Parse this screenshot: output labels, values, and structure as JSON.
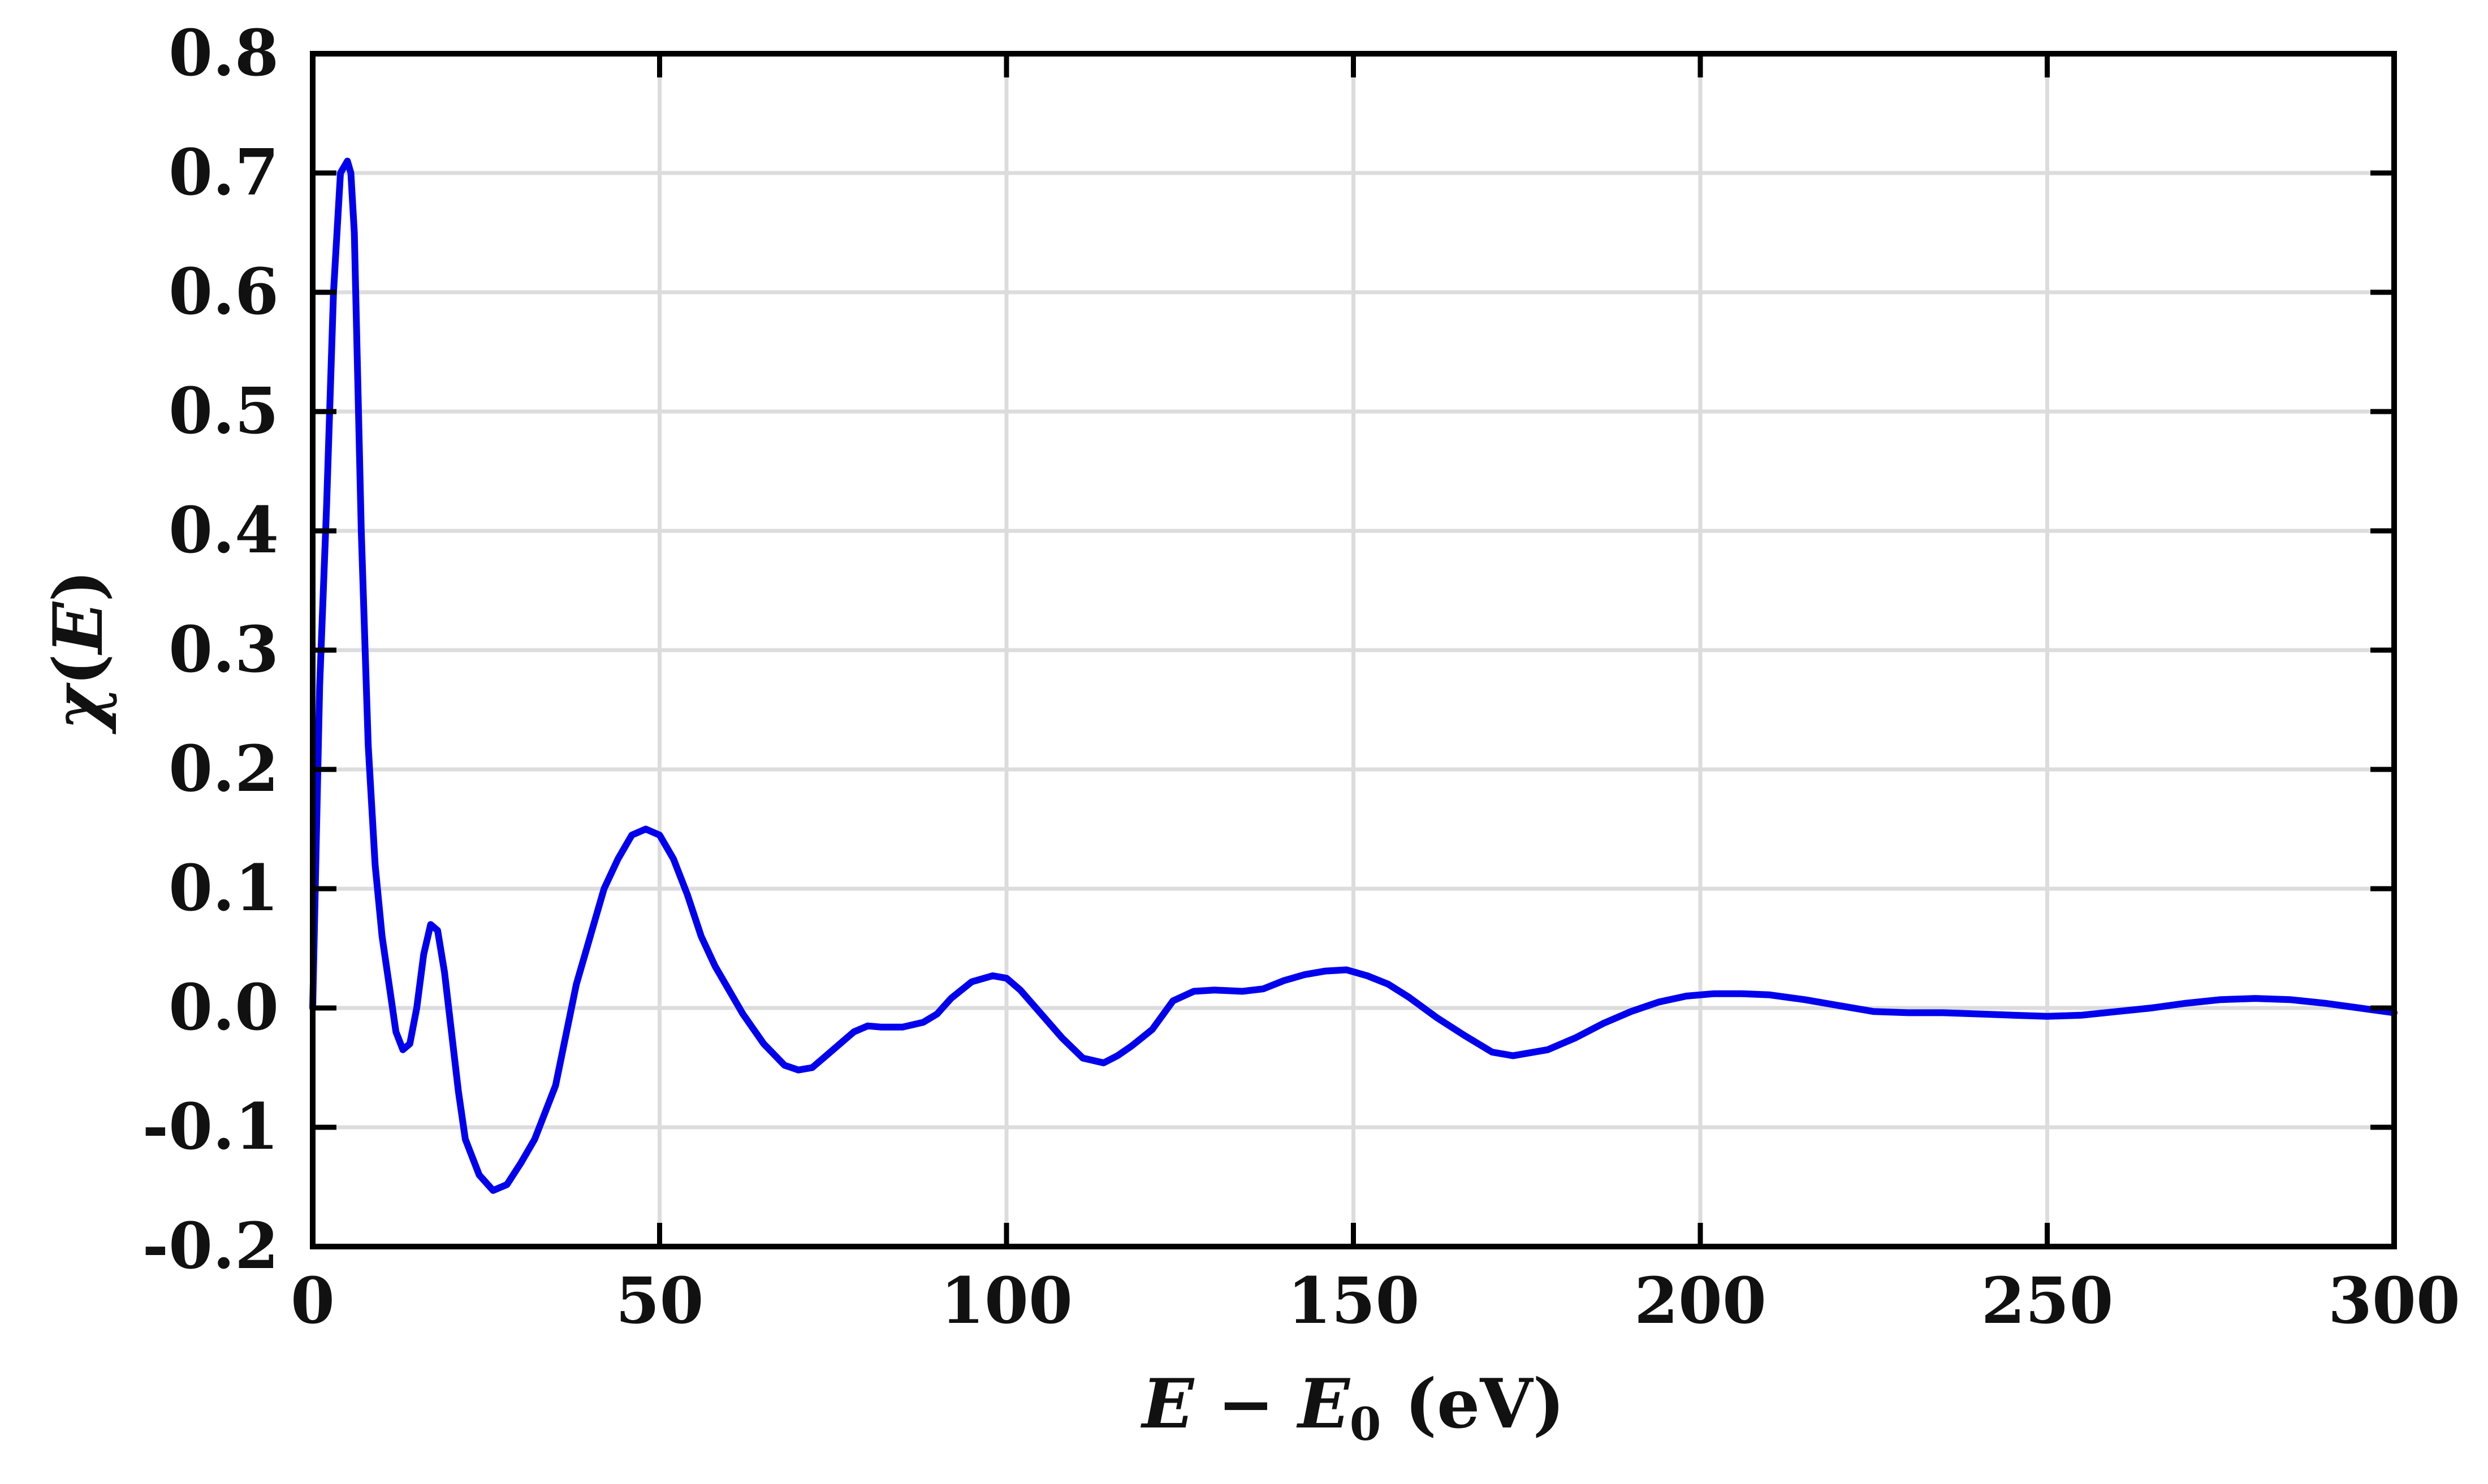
{
  "chart_data": {
    "type": "line",
    "title": "",
    "xlabel": {
      "prefix": "E",
      "minus": " − ",
      "var": "E",
      "sub": "0",
      "unit": " (eV)"
    },
    "ylabel": {
      "chi": "χ",
      "open": "(",
      "var": "E",
      "close": ")"
    },
    "xlim": [
      0,
      300
    ],
    "ylim": [
      -0.2,
      0.8
    ],
    "xticks": [
      0,
      50,
      100,
      150,
      200,
      250,
      300
    ],
    "xtick_labels": [
      "0",
      "50",
      "100",
      "150",
      "200",
      "250",
      "300"
    ],
    "yticks": [
      -0.2,
      -0.1,
      0.0,
      0.1,
      0.2,
      0.3,
      0.4,
      0.5,
      0.6,
      0.7,
      0.8
    ],
    "ytick_labels": [
      "-0.2",
      "-0.1",
      "0.0",
      "0.1",
      "0.2",
      "0.3",
      "0.4",
      "0.5",
      "0.6",
      "0.7",
      "0.8"
    ],
    "grid": true,
    "colors": {
      "series": "#0000ee"
    },
    "series": [
      {
        "x": [
          0,
          1,
          2,
          3,
          4,
          5,
          5.5,
          6,
          7,
          8,
          9,
          10,
          11,
          12,
          13,
          14,
          15,
          16,
          17,
          18,
          19,
          20,
          21,
          22,
          24,
          26,
          28,
          30,
          32,
          33,
          35,
          38,
          40,
          42,
          44,
          46,
          48,
          50,
          52,
          54,
          56,
          58,
          60,
          62,
          65,
          68,
          70,
          72,
          74,
          76,
          78,
          80,
          82,
          85,
          88,
          90,
          92,
          95,
          98,
          100,
          102,
          105,
          108,
          111,
          114,
          116,
          118,
          121,
          124,
          127,
          130,
          134,
          137,
          140,
          143,
          146,
          149,
          152,
          155,
          158,
          162,
          166,
          170,
          173,
          175,
          178,
          182,
          186,
          190,
          194,
          198,
          202,
          206,
          210,
          215,
          220,
          225,
          230,
          235,
          240,
          245,
          250,
          255,
          260,
          265,
          270,
          275,
          280,
          285,
          290,
          295,
          300
        ],
        "y": [
          0.0,
          0.27,
          0.42,
          0.6,
          0.7,
          0.71,
          0.7,
          0.65,
          0.4,
          0.22,
          0.12,
          0.06,
          0.02,
          -0.02,
          -0.035,
          -0.03,
          0.0,
          0.045,
          0.07,
          0.065,
          0.03,
          -0.02,
          -0.07,
          -0.11,
          -0.14,
          -0.153,
          -0.148,
          -0.13,
          -0.11,
          -0.095,
          -0.065,
          0.02,
          0.06,
          0.1,
          0.125,
          0.145,
          0.15,
          0.145,
          0.125,
          0.095,
          0.06,
          0.035,
          0.015,
          -0.005,
          -0.03,
          -0.048,
          -0.052,
          -0.05,
          -0.04,
          -0.03,
          -0.02,
          -0.015,
          -0.016,
          -0.016,
          -0.012,
          -0.005,
          0.008,
          0.022,
          0.027,
          0.025,
          0.015,
          -0.005,
          -0.025,
          -0.042,
          -0.046,
          -0.04,
          -0.032,
          -0.018,
          0.006,
          0.014,
          0.015,
          0.014,
          0.016,
          0.023,
          0.028,
          0.031,
          0.032,
          0.027,
          0.02,
          0.009,
          -0.008,
          -0.023,
          -0.037,
          -0.04,
          -0.038,
          -0.035,
          -0.025,
          -0.013,
          -0.003,
          0.005,
          0.01,
          0.012,
          0.012,
          0.011,
          0.007,
          0.002,
          -0.003,
          -0.004,
          -0.004,
          -0.005,
          -0.006,
          -0.007,
          -0.006,
          -0.003,
          0.0,
          0.004,
          0.007,
          0.008,
          0.007,
          0.004,
          0.0,
          -0.004
        ]
      }
    ]
  }
}
